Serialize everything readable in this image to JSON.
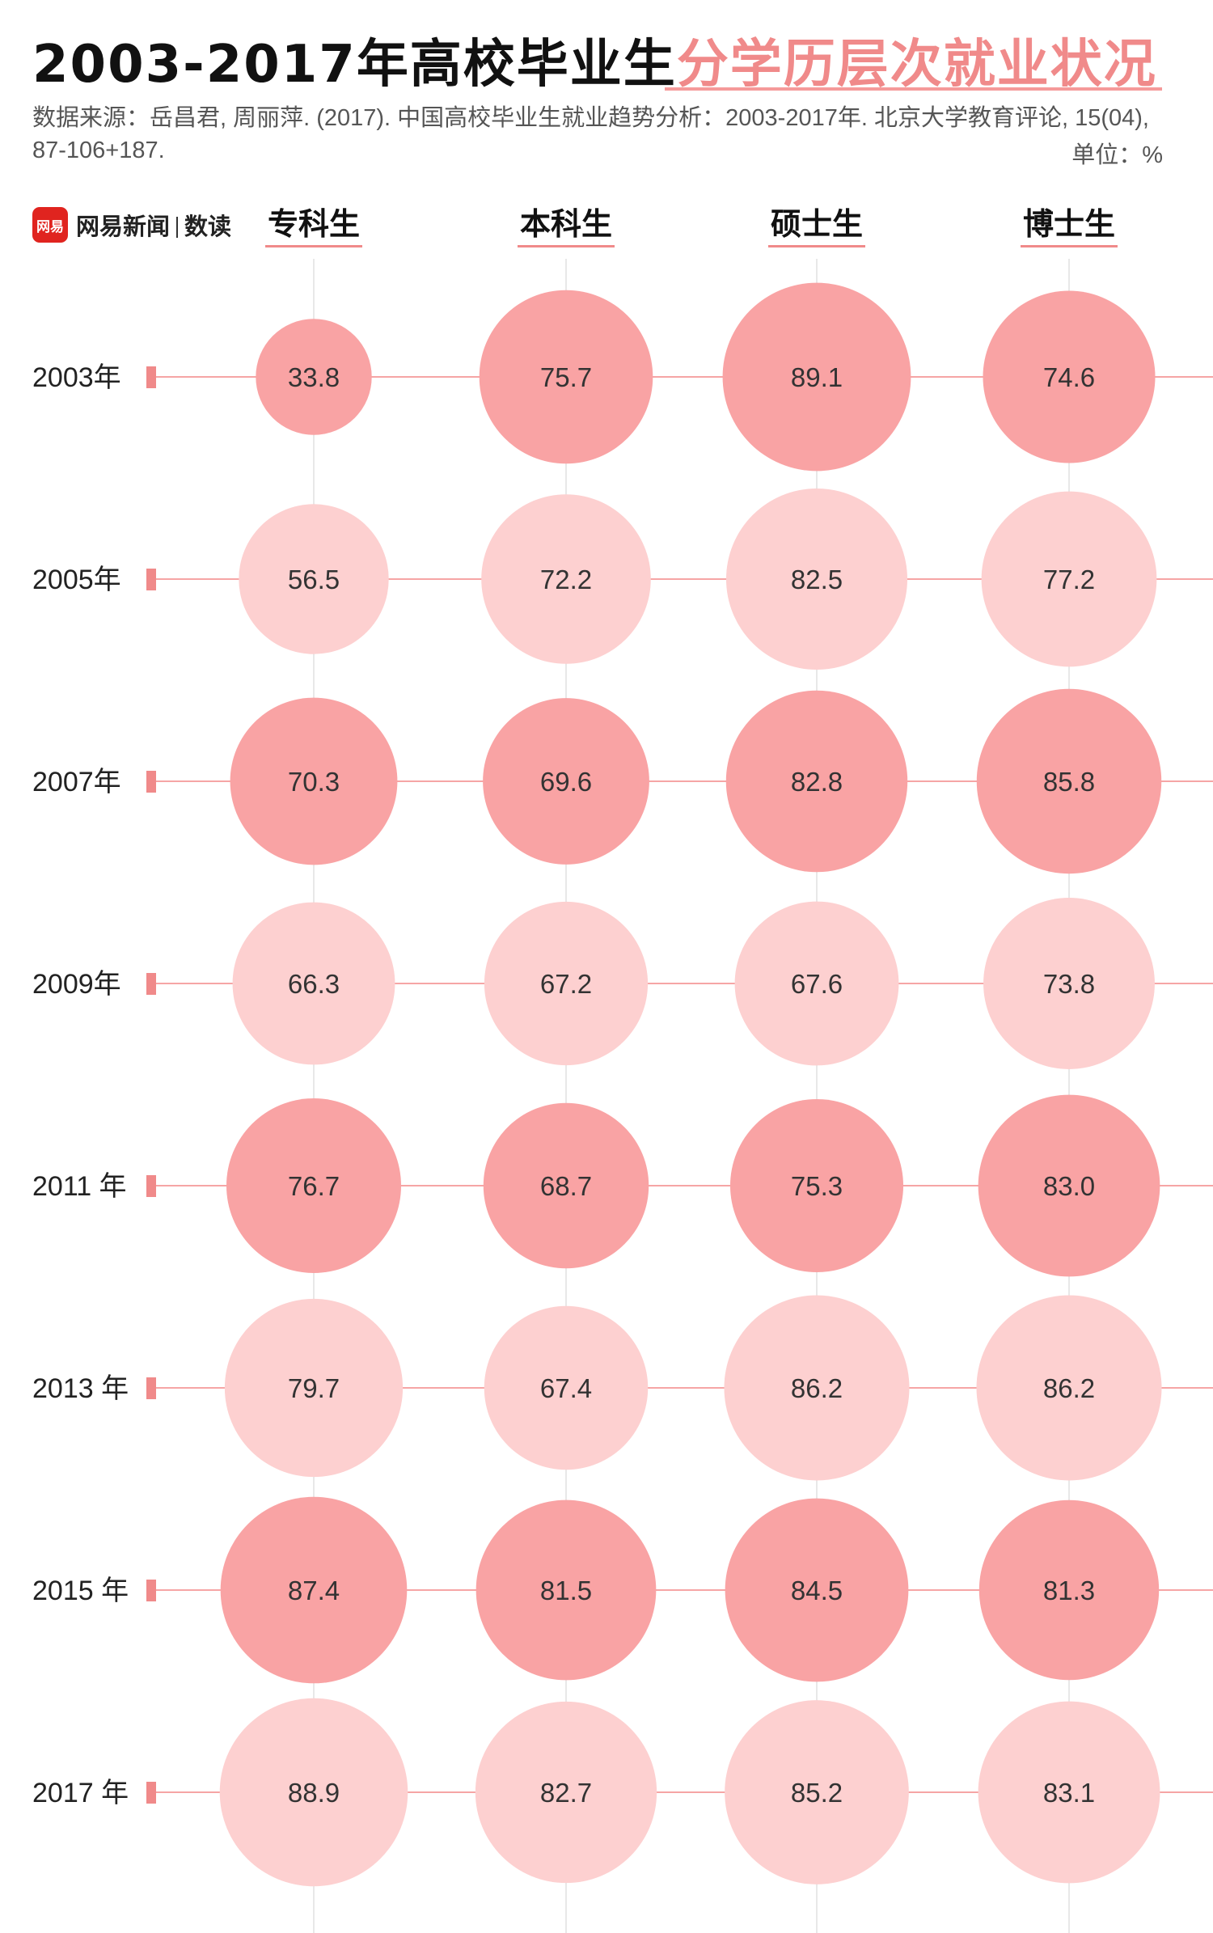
{
  "header": {
    "title_main": "2003-2017年高校毕业生",
    "title_highlight": "分学历层次就业状况",
    "source": "数据来源：岳昌君, 周丽萍. (2017). 中国高校毕业生就业趋势分析：2003-2017年. 北京大学教育评论, 15(04), 87-106+187.",
    "unit": "单位：%"
  },
  "brand": {
    "mark": "网易",
    "name": "网易新闻",
    "section": "数读",
    "color": "#e0241f"
  },
  "colors": {
    "accent": "#f08a8a",
    "bubble_dark": "#f9a3a4",
    "bubble_light": "#fdd0d0",
    "line": "#f6a5a5",
    "marker": "#f08a8a",
    "grid": "#e8e8e8"
  },
  "chart_data": {
    "type": "bubble",
    "title": "2003-2017年高校毕业生分学历层次就业状况",
    "unit": "%",
    "categories": [
      "专科生",
      "本科生",
      "硕士生",
      "博士生"
    ],
    "years": [
      "2003年",
      "2005年",
      "2007年",
      "2009年",
      "2011 年",
      "2013 年",
      "2015 年",
      "2017 年"
    ],
    "series": [
      {
        "name": "专科生",
        "values": [
          33.8,
          56.5,
          70.3,
          66.3,
          76.7,
          79.7,
          87.4,
          88.9
        ]
      },
      {
        "name": "本科生",
        "values": [
          75.7,
          72.2,
          69.6,
          67.2,
          68.7,
          67.4,
          81.5,
          82.7
        ]
      },
      {
        "name": "硕士生",
        "values": [
          89.1,
          82.5,
          82.8,
          67.6,
          75.3,
          86.2,
          84.5,
          85.2
        ]
      },
      {
        "name": "博士生",
        "values": [
          74.6,
          77.2,
          85.8,
          73.8,
          83.0,
          86.2,
          81.3,
          83.1
        ]
      }
    ]
  }
}
